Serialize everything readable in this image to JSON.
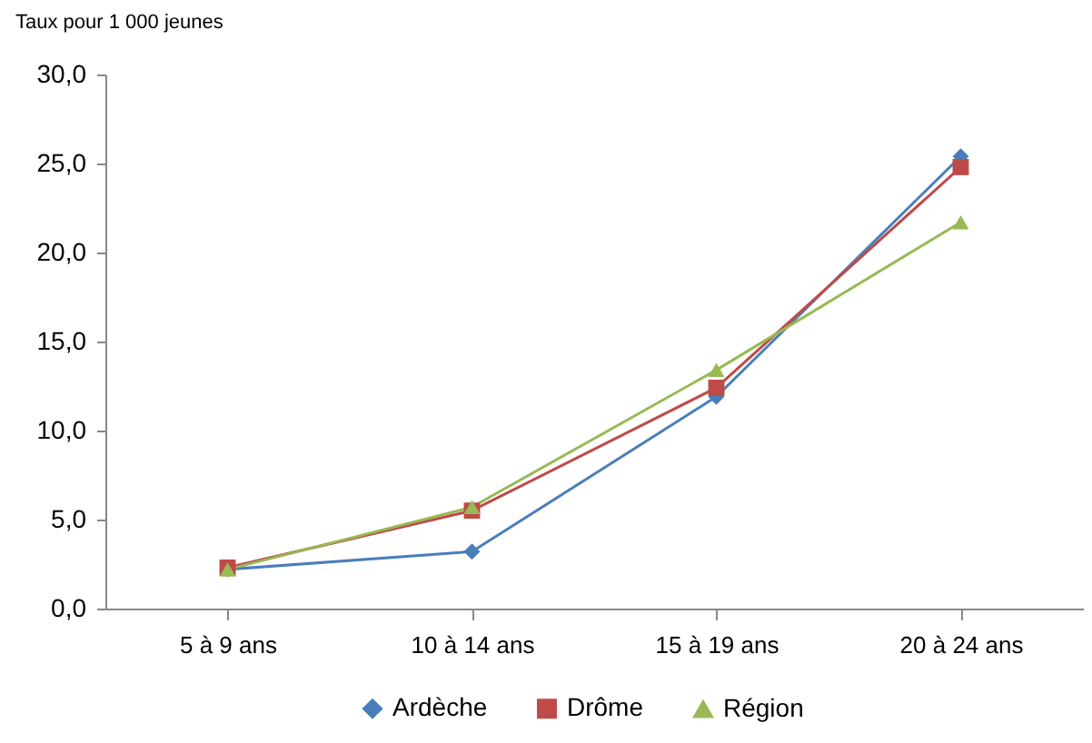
{
  "chart_data": {
    "type": "line",
    "ylabel": "Taux pour 1 000 jeunes",
    "categories": [
      "5 à 9 ans",
      "10 à 14 ans",
      "15 à 19 ans",
      "20 à 24 ans"
    ],
    "series": [
      {
        "name": "Ardèche",
        "color": "#4a7ebb",
        "marker": "diamond",
        "values": [
          2.2,
          3.2,
          11.9,
          25.4
        ]
      },
      {
        "name": "Drôme",
        "color": "#be4b48",
        "marker": "square",
        "values": [
          2.3,
          5.5,
          12.4,
          24.8
        ]
      },
      {
        "name": "Région",
        "color": "#98b954",
        "marker": "triangle",
        "values": [
          2.2,
          5.7,
          13.4,
          21.7
        ]
      }
    ],
    "ylim": [
      0,
      30
    ],
    "yticks": [
      {
        "value": 0,
        "label": "0,0"
      },
      {
        "value": 5,
        "label": "5,0"
      },
      {
        "value": 10,
        "label": "10,0"
      },
      {
        "value": 15,
        "label": "15,0"
      },
      {
        "value": 20,
        "label": "20,0"
      },
      {
        "value": 25,
        "label": "25,0"
      },
      {
        "value": 30,
        "label": "30,0"
      }
    ],
    "grid": false,
    "legend": "bottom",
    "line_style": "solid"
  }
}
